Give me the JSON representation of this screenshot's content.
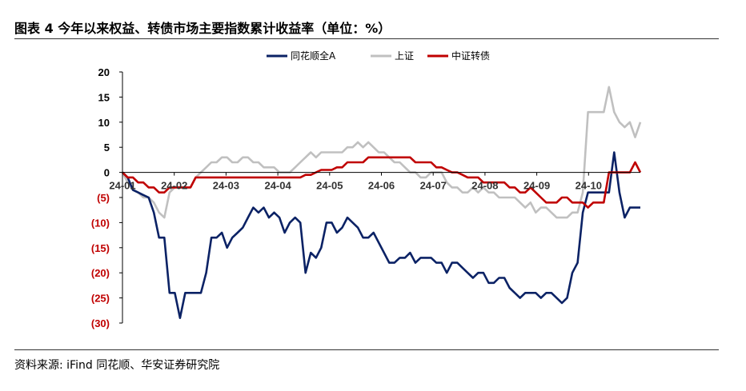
{
  "figure": {
    "title": "图表 4  今年以来权益、转债市场主要指数累计收益率（单位：%）",
    "source": "资料来源: iFind 同花顺、华安证券研究院"
  },
  "colors": {
    "series_0": "#0b2265",
    "series_1": "#c0c0c0",
    "series_2": "#c00000",
    "negative_tick": "#c00000",
    "positive_tick": "#000000"
  },
  "chart_data": {
    "type": "line",
    "title": "",
    "xlabel": "",
    "ylabel": "",
    "ylim": [
      -30,
      20
    ],
    "yticks": [
      20,
      15,
      10,
      5,
      0,
      -5,
      -10,
      -15,
      -20,
      -25,
      -30
    ],
    "ytick_labels": [
      "20",
      "15",
      "10",
      "5",
      "0",
      "(5)",
      "(10)",
      "(15)",
      "(20)",
      "(25)",
      "(30)"
    ],
    "xtick_labels": [
      "24-01",
      "24-02",
      "24-03",
      "24-04",
      "24-05",
      "24-06",
      "24-07",
      "24-08",
      "24-09",
      "24-10"
    ],
    "legend_position": "top-center",
    "grid": false,
    "x": [
      1,
      2,
      3,
      4,
      5,
      6,
      7,
      8,
      9,
      10,
      11,
      12,
      13,
      14,
      15,
      16,
      17,
      18,
      19,
      20,
      21,
      22,
      23,
      24,
      25,
      26,
      27,
      28,
      29,
      30,
      31,
      32,
      33,
      34,
      35,
      36,
      37,
      38,
      39,
      40,
      41,
      42,
      43,
      44,
      45,
      46,
      47,
      48,
      49,
      50,
      51,
      52,
      53,
      54,
      55,
      56,
      57,
      58,
      59,
      60,
      61,
      62,
      63,
      64,
      65,
      66,
      67,
      68,
      69,
      70,
      71,
      72,
      73,
      74,
      75,
      76,
      77,
      78,
      79,
      80,
      81,
      82,
      83,
      84,
      85,
      86,
      87,
      88,
      89,
      90,
      91,
      92,
      93,
      94,
      95,
      96,
      97,
      98,
      99,
      100
    ],
    "series": [
      {
        "name": "同花顺全A",
        "values": [
          0,
          -1,
          -3.5,
          -4,
          -4.5,
          -5,
          -8,
          -13,
          -13,
          -24,
          -24,
          -29,
          -24,
          -24,
          -24,
          -24,
          -20,
          -13,
          -13,
          -12,
          -15,
          -13,
          -12,
          -11,
          -9,
          -7,
          -8,
          -7,
          -9,
          -8,
          -9,
          -12,
          -10,
          -9,
          -10,
          -20,
          -16,
          -17,
          -15,
          -10,
          -10,
          -12,
          -11,
          -9,
          -10,
          -11,
          -13,
          -13,
          -12,
          -14,
          -16,
          -18,
          -18,
          -17,
          -17,
          -16,
          -18,
          -17,
          -17,
          -17,
          -18,
          -18,
          -20,
          -18,
          -18,
          -19,
          -20,
          -21,
          -20,
          -20,
          -22,
          -22,
          -21,
          -21,
          -23,
          -24,
          -25,
          -24,
          -24,
          -24,
          -25,
          -24,
          -24,
          -25,
          -26,
          -25,
          -20,
          -18,
          -8,
          -4,
          -4,
          -4,
          -4,
          -4,
          4,
          -4,
          -9,
          -7,
          -7,
          -7
        ]
      },
      {
        "name": "上证",
        "values": [
          0,
          -2,
          -3.5,
          -4,
          -5,
          -5,
          -6,
          -8,
          -9,
          -4,
          -3,
          -3,
          -3,
          -3,
          -1,
          0,
          1,
          2,
          2,
          3,
          3,
          2,
          2,
          3,
          3,
          2,
          2,
          1,
          1,
          1,
          0,
          0,
          0,
          1,
          2,
          3,
          4,
          3,
          4,
          4,
          4,
          4,
          4,
          5,
          5,
          6,
          5,
          6,
          5,
          4,
          4,
          3,
          2,
          2,
          1,
          0,
          0,
          -1,
          -1,
          0,
          0,
          0,
          -2,
          -3,
          -3,
          -4,
          -4,
          -3,
          -4,
          -3,
          -4,
          -4,
          -5,
          -5,
          -5,
          -5,
          -6,
          -7,
          -6,
          -8,
          -7,
          -7,
          -8,
          -9,
          -9,
          -9,
          -8,
          -8,
          -4,
          12,
          12,
          12,
          12,
          17,
          12,
          10,
          9,
          10,
          7,
          10
        ]
      },
      {
        "name": "中证转债",
        "values": [
          0,
          -1,
          -1,
          -2,
          -2,
          -3,
          -3,
          -4,
          -4,
          -3,
          -3,
          -3,
          -3,
          -3,
          -1,
          -1,
          -1,
          -1,
          -1,
          -1,
          -1,
          -1,
          -1,
          -1,
          -1,
          -1,
          -1,
          -1,
          -1,
          -1,
          -1,
          -1,
          -1,
          -1,
          -1,
          -0.5,
          -0.5,
          0,
          0.5,
          0.5,
          0.5,
          1,
          1,
          2,
          2,
          2,
          2,
          3,
          3,
          3,
          3,
          3,
          3,
          3,
          3,
          3,
          2,
          2,
          2,
          2,
          1,
          1,
          0.5,
          0,
          0,
          -0.5,
          -1,
          -1,
          -1,
          -2,
          -2,
          -2,
          -2,
          -2,
          -3,
          -3,
          -4,
          -4,
          -3,
          -4,
          -5,
          -6,
          -6,
          -6,
          -5,
          -5,
          -6,
          -6,
          -6,
          -7,
          -6,
          -6,
          -6,
          0,
          0,
          0,
          0,
          0,
          2,
          0
        ]
      }
    ]
  }
}
